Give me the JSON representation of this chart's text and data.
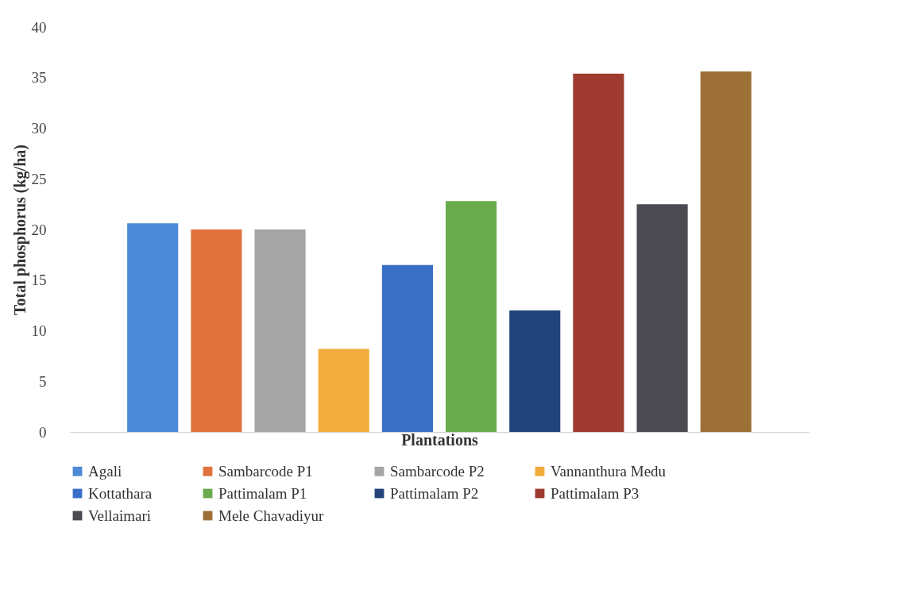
{
  "chart_data": {
    "type": "bar",
    "xlabel": "Plantations",
    "ylabel": "Total phosphorus (kg/ha)",
    "categories": [
      null
    ],
    "ylim": [
      0,
      40
    ],
    "yticks": [
      0,
      5,
      10,
      15,
      20,
      25,
      30,
      35,
      40
    ],
    "grid": false,
    "legend": "bottom",
    "series": [
      {
        "name": "Agali",
        "color": "#4a8ad6",
        "values": [
          20.6
        ]
      },
      {
        "name": "Sambarcode P1",
        "color": "#e0733d",
        "values": [
          20.0
        ]
      },
      {
        "name": "Sambarcode P2",
        "color": "#a5a5a5",
        "values": [
          20.0
        ]
      },
      {
        "name": "Vannanthura Medu",
        "color": "#f2ac3c",
        "values": [
          8.2
        ]
      },
      {
        "name": "Kottathara",
        "color": "#3a6fc6",
        "values": [
          16.5
        ]
      },
      {
        "name": "Pattimalam P1",
        "color": "#6aab4d",
        "values": [
          22.8
        ]
      },
      {
        "name": "Pattimalam P2",
        "color": "#23447a",
        "values": [
          12.0
        ]
      },
      {
        "name": "Pattimalam P3",
        "color": "#9e3a2f",
        "values": [
          35.4
        ]
      },
      {
        "name": "Vellaimari",
        "color": "#4a4a50",
        "values": [
          22.5
        ]
      },
      {
        "name": "Mele Chavadiyur",
        "color": "#9c7036",
        "values": [
          35.6
        ]
      }
    ]
  }
}
